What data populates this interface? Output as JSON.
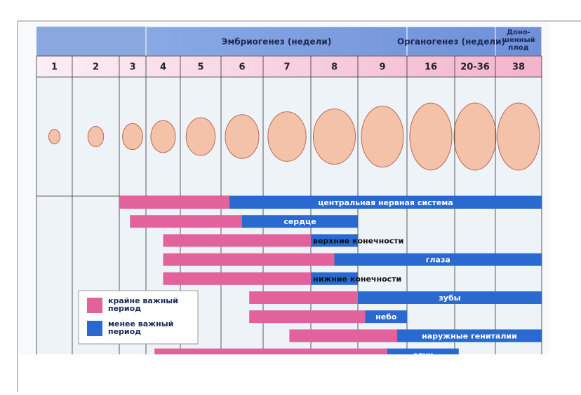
{
  "header": {
    "groups": [
      {
        "label": "Эмбриогенез (недели)",
        "span": [
          3,
          9
        ]
      },
      {
        "label": "Органогенез (недели)",
        "span": [
          9,
          11
        ]
      },
      {
        "lines": [
          "Доно-",
          "шенный",
          "плод"
        ],
        "span": [
          11,
          12
        ]
      }
    ],
    "weeks": [
      "1",
      "2",
      "3",
      "4",
      "5",
      "6",
      "7",
      "8",
      "9",
      "16",
      "20-36",
      "38"
    ]
  },
  "rows": [
    {
      "label": "центральная нервная система",
      "critical": [
        2,
        5.2
      ],
      "less": [
        5.2,
        12
      ]
    },
    {
      "label": "сердце",
      "critical": [
        2.4,
        5.5
      ],
      "less": [
        5.5,
        8
      ]
    },
    {
      "label": "верхние конечности",
      "critical": [
        3.5,
        7
      ],
      "less": [
        7,
        8
      ]
    },
    {
      "label": "глаза",
      "critical": [
        3.5,
        7.5
      ],
      "less": [
        7.5,
        12
      ]
    },
    {
      "label": "нижние конечности",
      "critical": [
        3.5,
        7
      ],
      "less": [
        7,
        8
      ]
    },
    {
      "label": "зубы",
      "critical": [
        5.67,
        8
      ],
      "less": [
        8,
        12
      ]
    },
    {
      "label": "небо",
      "critical": [
        5.67,
        8.15
      ],
      "less": [
        8.15,
        9
      ]
    },
    {
      "label": "наружные гениталии",
      "critical": [
        6.55,
        8.8
      ],
      "less": [
        8.8,
        12
      ]
    },
    {
      "label": "слух",
      "critical": [
        3.25,
        8.6
      ],
      "less": [
        8.6,
        10.1
      ]
    }
  ],
  "legend": [
    {
      "lines": [
        "крайне важный",
        "период"
      ]
    },
    {
      "lines": [
        "менее важный",
        "период"
      ]
    }
  ]
}
